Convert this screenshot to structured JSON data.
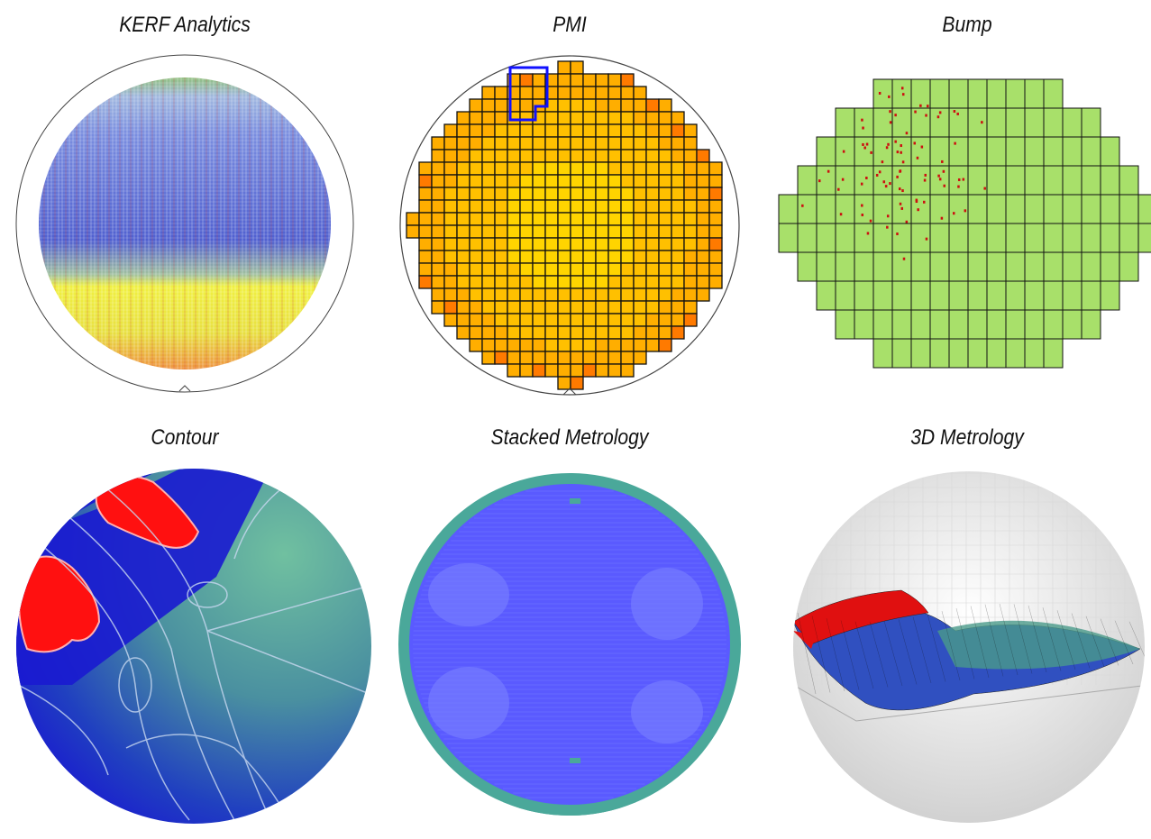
{
  "panels": [
    {
      "title": "KERF Analytics"
    },
    {
      "title": "PMI"
    },
    {
      "title": "Bump"
    },
    {
      "title": "Contour"
    },
    {
      "title": "Stacked Metrology"
    },
    {
      "title": "3D Metrology"
    }
  ],
  "colors": {
    "pmi_base": "#ffc000",
    "pmi_edge": "#ff7a00",
    "pmi_highlight": "#1010ff",
    "bump_die": "#a8e06a",
    "bump_defect": "#cc1010",
    "contour_low": "#1a1ad0",
    "contour_high": "#ff1010",
    "contour_mid": "#6ab89a",
    "stacked_inner": "#5a5aff",
    "stacked_ring": "#4aa89a"
  }
}
